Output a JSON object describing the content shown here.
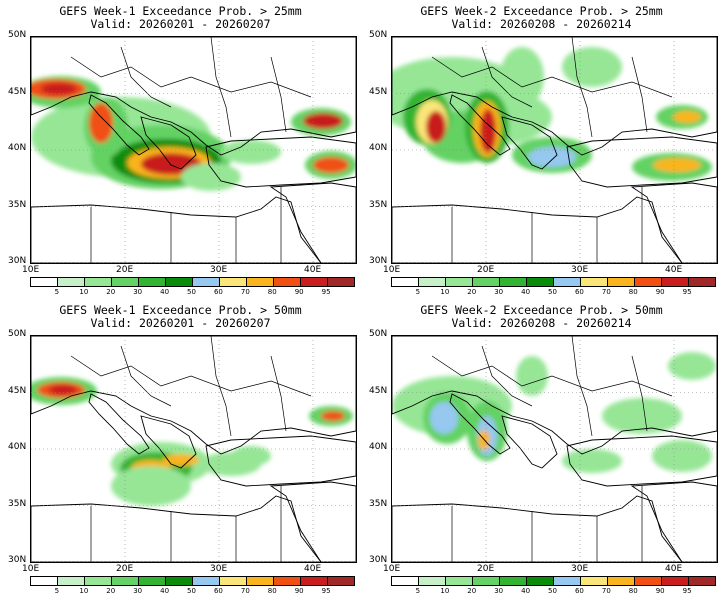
{
  "panels": [
    {
      "title": "GEFS Week-1 Exceedance Prob. > 25mm",
      "valid": "Valid: 20260201 - 20260207",
      "week": 1,
      "threshold_mm": 25
    },
    {
      "title": "GEFS Week-2 Exceedance Prob. > 25mm",
      "valid": "Valid: 20260208 - 20260214",
      "week": 2,
      "threshold_mm": 25
    },
    {
      "title": "GEFS Week-1 Exceedance Prob. > 50mm",
      "valid": "Valid: 20260201 - 20260207",
      "week": 1,
      "threshold_mm": 50
    },
    {
      "title": "GEFS Week-2 Exceedance Prob. > 50mm",
      "valid": "Valid: 20260208 - 20260214",
      "week": 2,
      "threshold_mm": 50
    }
  ],
  "lat_labels": [
    "50N",
    "45N",
    "40N",
    "35N",
    "30N"
  ],
  "lon_labels": [
    "10E",
    "20E",
    "30E",
    "40E"
  ],
  "colorbar": {
    "labels": [
      "5",
      "10",
      "20",
      "30",
      "40",
      "50",
      "60",
      "70",
      "80",
      "90",
      "95"
    ],
    "colors": [
      "#ffffff",
      "#c8f0c8",
      "#96e696",
      "#64d264",
      "#32b432",
      "#0a8c0a",
      "#96c8f0",
      "#fae678",
      "#fab41e",
      "#f05014",
      "#c81e1e",
      "#a02828"
    ]
  }
}
